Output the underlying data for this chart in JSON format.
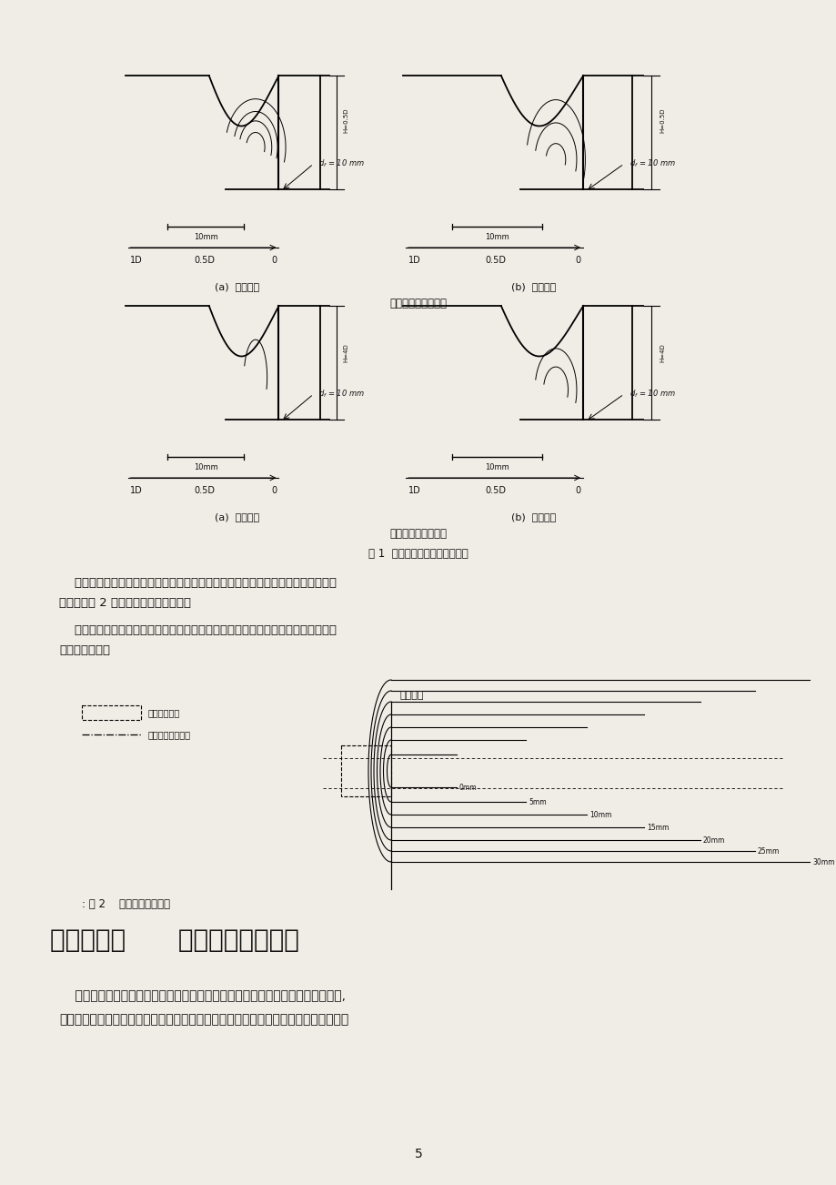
{
  "bg_color": "#f0ede6",
  "page_width": 9.2,
  "page_height": 13.02,
  "text_color": "#111111",
  "fig1_caption": "图 1  埋深与隧道纵断面内的下沉",
  "fig2_caption": ": 图 2    抽表下沉与抽表开",
  "section_title": "施工要点二      稳定掌子面的方法",
  "para_top1a": "    根据实测结果的分析，首先是接近掌子面前方的围岩急剧下沉，并向后方扩展，结",
  "para_top1b": "果形成了图 2 所示的盆状的地表下沉。",
  "para_top2a": "    此下沉槽的坡度是与围岩中发生的剪应变相对应的。超过此限界后，如图所示就会",
  "para_top2b": "发生地表开裂。",
  "para_body1": "    在一开始我们就提出保护围岩是隧道施工的一个最重要的原则。但如何保护围岩,",
  "para_body2": "在软弱围岩中，就只有采用增强围岩自身支护能力的方法。目前的许多辅助工法就是为",
  "label_top_a": "(a)  上半底削",
  "label_top_b": "(b)  下半底削",
  "center_top": "土戻りの小さい場合",
  "label_bot_a": "(a)  上半底削",
  "label_bot_b": "(b)  下半底削",
  "center_bot": "土抜りの大きい場合",
  "legend1": "トンネル位置",
  "legend2": "地表面のクラック",
  "fig2_top_label": "上半切削",
  "page_num": "5"
}
